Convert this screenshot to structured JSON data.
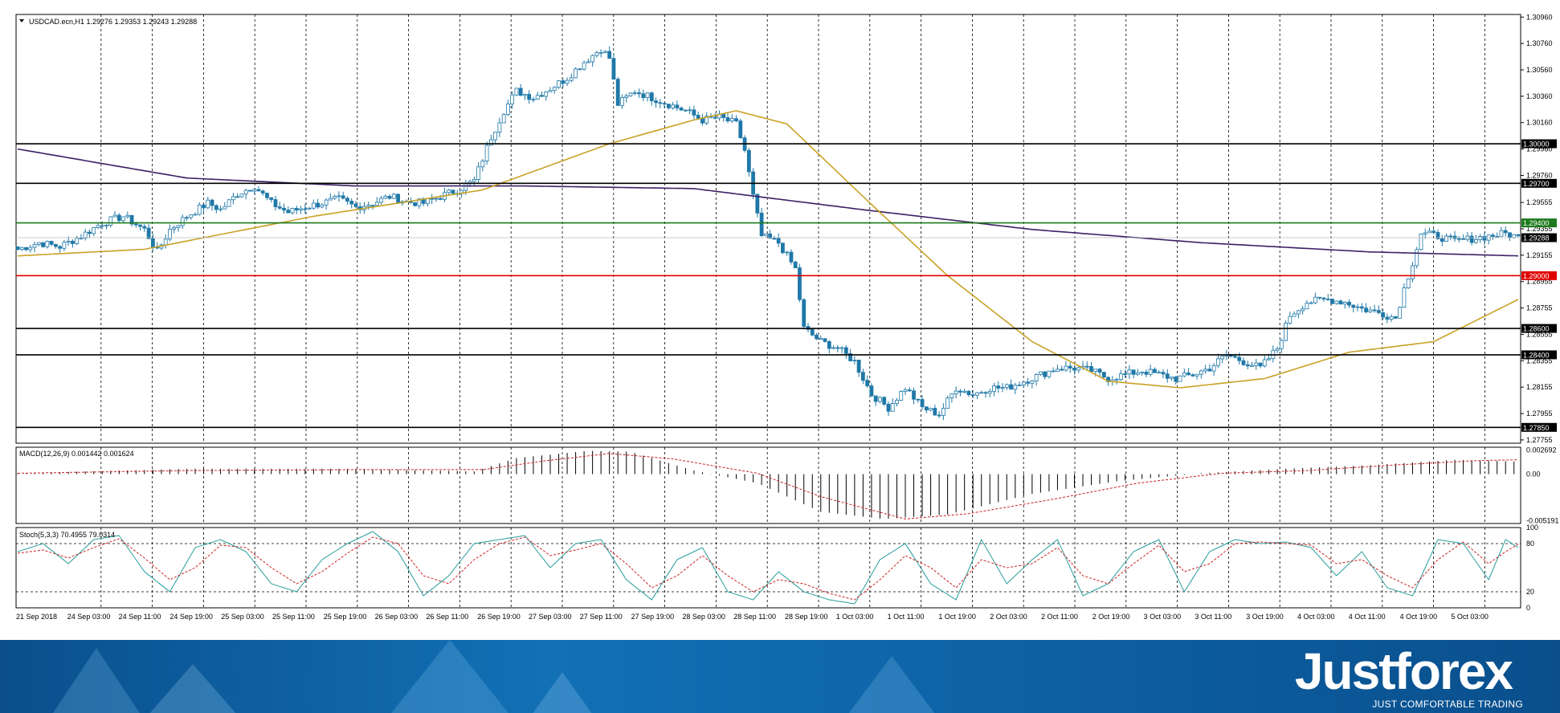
{
  "colors": {
    "candle_up": "#ffffff",
    "candle_down": "#1f78a8",
    "wick": "#1f78a8",
    "ma_long": "#3b2064",
    "ma_short": "#c9a227",
    "level_black": "#000000",
    "level_green": "#1c7a1c",
    "level_red": "#e00000",
    "stoch_main": "#2a9d9d",
    "stoch_signal": "#cc2222",
    "macd_signal": "#cc2222",
    "banner": "#0d5fa2"
  },
  "chart_data": [
    {
      "type": "candlestick",
      "title": "USDCAD.ecn,H1  1.29276 1.29353 1.29243 1.29288",
      "y_ticks": [
        "1.30960",
        "1.30760",
        "1.30560",
        "1.30360",
        "1.30160",
        "1.29960",
        "1.29760",
        "1.29555",
        "1.29355",
        "1.29155",
        "1.28955",
        "1.28755",
        "1.28555",
        "1.28355",
        "1.28155",
        "1.27955",
        "1.27755"
      ],
      "ylim": [
        1.2773,
        1.3098
      ],
      "levels": [
        {
          "value": 1.3,
          "label": "1.30000",
          "color": "black"
        },
        {
          "value": 1.297,
          "label": "1.29700",
          "color": "black"
        },
        {
          "value": 1.294,
          "label": "1.29400",
          "color": "green"
        },
        {
          "value": 1.29288,
          "label": "1.29288",
          "color": "current"
        },
        {
          "value": 1.29,
          "label": "1.29000",
          "color": "red"
        },
        {
          "value": 1.286,
          "label": "1.28600",
          "color": "black"
        },
        {
          "value": 1.284,
          "label": "1.28400",
          "color": "black"
        },
        {
          "value": 1.2785,
          "label": "1.27850",
          "color": "black"
        }
      ],
      "close_path": [
        [
          0,
          1.292
        ],
        [
          5,
          1.2925
        ],
        [
          10,
          1.2922
        ],
        [
          15,
          1.293
        ],
        [
          20,
          1.294
        ],
        [
          25,
          1.2945
        ],
        [
          30,
          1.2935
        ],
        [
          33,
          1.2918
        ],
        [
          36,
          1.2935
        ],
        [
          40,
          1.2945
        ],
        [
          45,
          1.2955
        ],
        [
          48,
          1.295
        ],
        [
          52,
          1.2962
        ],
        [
          56,
          1.2968
        ],
        [
          60,
          1.2955
        ],
        [
          64,
          1.2948
        ],
        [
          68,
          1.2952
        ],
        [
          72,
          1.2955
        ],
        [
          76,
          1.2958
        ],
        [
          80,
          1.2952
        ],
        [
          84,
          1.2955
        ],
        [
          88,
          1.296
        ],
        [
          92,
          1.2956
        ],
        [
          96,
          1.2955
        ],
        [
          100,
          1.296
        ],
        [
          104,
          1.2965
        ],
        [
          108,
          1.2972
        ],
        [
          112,
          1.3005
        ],
        [
          115,
          1.3025
        ],
        [
          118,
          1.304
        ],
        [
          122,
          1.3035
        ],
        [
          126,
          1.3042
        ],
        [
          130,
          1.305
        ],
        [
          134,
          1.3062
        ],
        [
          138,
          1.3072
        ],
        [
          140,
          1.3065
        ],
        [
          142,
          1.303
        ],
        [
          146,
          1.304
        ],
        [
          150,
          1.3035
        ],
        [
          154,
          1.303
        ],
        [
          158,
          1.3025
        ],
        [
          162,
          1.3018
        ],
        [
          166,
          1.302
        ],
        [
          170,
          1.3015
        ],
        [
          172,
          1.2995
        ],
        [
          174,
          1.296
        ],
        [
          176,
          1.293
        ],
        [
          180,
          1.2925
        ],
        [
          184,
          1.2905
        ],
        [
          186,
          1.286
        ],
        [
          190,
          1.285
        ],
        [
          194,
          1.2845
        ],
        [
          198,
          1.2835
        ],
        [
          202,
          1.281
        ],
        [
          206,
          1.28
        ],
        [
          210,
          1.2815
        ],
        [
          214,
          1.28
        ],
        [
          218,
          1.2795
        ],
        [
          222,
          1.2815
        ],
        [
          226,
          1.281
        ],
        [
          230,
          1.2815
        ],
        [
          234,
          1.2815
        ],
        [
          238,
          1.282
        ],
        [
          242,
          1.2825
        ],
        [
          246,
          1.283
        ],
        [
          250,
          1.283
        ],
        [
          254,
          1.2828
        ],
        [
          258,
          1.2822
        ],
        [
          262,
          1.2825
        ],
        [
          266,
          1.2828
        ],
        [
          270,
          1.2825
        ],
        [
          274,
          1.2822
        ],
        [
          278,
          1.2825
        ],
        [
          282,
          1.283
        ],
        [
          286,
          1.284
        ],
        [
          290,
          1.2835
        ],
        [
          294,
          1.283
        ],
        [
          298,
          1.2845
        ],
        [
          301,
          1.287
        ],
        [
          305,
          1.288
        ],
        [
          310,
          1.2882
        ],
        [
          314,
          1.288
        ],
        [
          318,
          1.2875
        ],
        [
          322,
          1.2872
        ],
        [
          326,
          1.2868
        ],
        [
          328,
          1.289
        ],
        [
          330,
          1.291
        ],
        [
          332,
          1.2932
        ],
        [
          336,
          1.293
        ],
        [
          340,
          1.2926
        ],
        [
          344,
          1.2928
        ],
        [
          348,
          1.293
        ],
        [
          352,
          1.2932
        ],
        [
          355,
          1.2929
        ]
      ],
      "ma_long": [
        [
          0,
          1.2996
        ],
        [
          40,
          1.2974
        ],
        [
          80,
          1.2968
        ],
        [
          120,
          1.2968
        ],
        [
          160,
          1.2966
        ],
        [
          200,
          1.295
        ],
        [
          240,
          1.2935
        ],
        [
          280,
          1.2925
        ],
        [
          320,
          1.2918
        ],
        [
          355,
          1.2915
        ]
      ],
      "ma_short": [
        [
          0,
          1.2915
        ],
        [
          30,
          1.292
        ],
        [
          70,
          1.2945
        ],
        [
          110,
          1.2965
        ],
        [
          140,
          1.3
        ],
        [
          160,
          1.3018
        ],
        [
          170,
          1.3025
        ],
        [
          182,
          1.3015
        ],
        [
          200,
          1.296
        ],
        [
          220,
          1.29
        ],
        [
          240,
          1.285
        ],
        [
          258,
          1.282
        ],
        [
          275,
          1.2815
        ],
        [
          295,
          1.2822
        ],
        [
          315,
          1.2842
        ],
        [
          335,
          1.285
        ],
        [
          355,
          1.2882
        ]
      ]
    },
    {
      "type": "bar",
      "title": "MACD(12,26,9) 0.001442 0.001624",
      "y_ticks": [
        "0.002692",
        "0.00",
        "-0.005191"
      ],
      "ylim": [
        -0.0055,
        0.003
      ],
      "hist_path": [
        [
          0,
          0.0001
        ],
        [
          40,
          0.0006
        ],
        [
          80,
          0.0006
        ],
        [
          108,
          0.0003
        ],
        [
          118,
          0.0018
        ],
        [
          135,
          0.0026
        ],
        [
          145,
          0.0025
        ],
        [
          160,
          0.0004
        ],
        [
          175,
          -0.001
        ],
        [
          190,
          -0.0042
        ],
        [
          205,
          -0.005
        ],
        [
          220,
          -0.0045
        ],
        [
          240,
          -0.0022
        ],
        [
          260,
          -0.0008
        ],
        [
          280,
          0.0001
        ],
        [
          300,
          0.0006
        ],
        [
          320,
          0.001
        ],
        [
          340,
          0.0016
        ],
        [
          355,
          0.0014
        ]
      ],
      "signal_path": [
        [
          0,
          0.0001
        ],
        [
          40,
          0.0004
        ],
        [
          80,
          0.0005
        ],
        [
          110,
          0.0005
        ],
        [
          125,
          0.0015
        ],
        [
          140,
          0.0023
        ],
        [
          155,
          0.0017
        ],
        [
          175,
          0.0001
        ],
        [
          190,
          -0.0025
        ],
        [
          210,
          -0.005
        ],
        [
          225,
          -0.0044
        ],
        [
          245,
          -0.0028
        ],
        [
          265,
          -0.001
        ],
        [
          285,
          0.0001
        ],
        [
          305,
          0.0004
        ],
        [
          325,
          0.001
        ],
        [
          345,
          0.0015
        ],
        [
          355,
          0.0016
        ]
      ]
    },
    {
      "type": "line",
      "title": "Stoch(5,3,3) 70.4955 79.0314",
      "y_ticks": [
        "100",
        "80",
        "20",
        "0"
      ],
      "ylim": [
        0,
        100
      ],
      "k_path": [
        [
          0,
          70
        ],
        [
          6,
          80
        ],
        [
          12,
          55
        ],
        [
          18,
          85
        ],
        [
          24,
          90
        ],
        [
          30,
          45
        ],
        [
          36,
          20
        ],
        [
          42,
          75
        ],
        [
          48,
          85
        ],
        [
          54,
          70
        ],
        [
          60,
          30
        ],
        [
          66,
          20
        ],
        [
          72,
          60
        ],
        [
          78,
          80
        ],
        [
          84,
          95
        ],
        [
          90,
          70
        ],
        [
          96,
          15
        ],
        [
          102,
          40
        ],
        [
          108,
          80
        ],
        [
          114,
          85
        ],
        [
          120,
          90
        ],
        [
          126,
          50
        ],
        [
          132,
          80
        ],
        [
          138,
          85
        ],
        [
          144,
          35
        ],
        [
          150,
          10
        ],
        [
          156,
          60
        ],
        [
          162,
          75
        ],
        [
          168,
          20
        ],
        [
          174,
          10
        ],
        [
          180,
          45
        ],
        [
          186,
          20
        ],
        [
          192,
          10
        ],
        [
          198,
          5
        ],
        [
          204,
          60
        ],
        [
          210,
          80
        ],
        [
          216,
          30
        ],
        [
          222,
          10
        ],
        [
          228,
          85
        ],
        [
          234,
          30
        ],
        [
          240,
          60
        ],
        [
          246,
          85
        ],
        [
          252,
          15
        ],
        [
          258,
          30
        ],
        [
          264,
          70
        ],
        [
          270,
          85
        ],
        [
          276,
          20
        ],
        [
          282,
          70
        ],
        [
          288,
          85
        ],
        [
          294,
          80
        ],
        [
          300,
          82
        ],
        [
          306,
          75
        ],
        [
          312,
          40
        ],
        [
          318,
          70
        ],
        [
          324,
          25
        ],
        [
          330,
          15
        ],
        [
          336,
          85
        ],
        [
          342,
          80
        ],
        [
          348,
          35
        ],
        [
          352,
          85
        ],
        [
          355,
          75
        ]
      ],
      "d_path": [
        [
          0,
          68
        ],
        [
          6,
          72
        ],
        [
          12,
          62
        ],
        [
          18,
          75
        ],
        [
          24,
          86
        ],
        [
          30,
          62
        ],
        [
          36,
          35
        ],
        [
          42,
          50
        ],
        [
          48,
          78
        ],
        [
          54,
          75
        ],
        [
          60,
          50
        ],
        [
          66,
          30
        ],
        [
          72,
          45
        ],
        [
          78,
          68
        ],
        [
          84,
          88
        ],
        [
          90,
          80
        ],
        [
          96,
          40
        ],
        [
          102,
          30
        ],
        [
          108,
          60
        ],
        [
          114,
          80
        ],
        [
          120,
          88
        ],
        [
          126,
          65
        ],
        [
          132,
          72
        ],
        [
          138,
          80
        ],
        [
          144,
          55
        ],
        [
          150,
          25
        ],
        [
          156,
          40
        ],
        [
          162,
          65
        ],
        [
          168,
          40
        ],
        [
          174,
          20
        ],
        [
          180,
          35
        ],
        [
          186,
          30
        ],
        [
          192,
          18
        ],
        [
          198,
          10
        ],
        [
          204,
          35
        ],
        [
          210,
          65
        ],
        [
          216,
          50
        ],
        [
          222,
          25
        ],
        [
          228,
          60
        ],
        [
          234,
          50
        ],
        [
          240,
          55
        ],
        [
          246,
          75
        ],
        [
          252,
          40
        ],
        [
          258,
          30
        ],
        [
          264,
          55
        ],
        [
          270,
          78
        ],
        [
          276,
          45
        ],
        [
          282,
          55
        ],
        [
          288,
          80
        ],
        [
          294,
          82
        ],
        [
          300,
          80
        ],
        [
          306,
          78
        ],
        [
          312,
          55
        ],
        [
          318,
          60
        ],
        [
          324,
          40
        ],
        [
          330,
          25
        ],
        [
          336,
          60
        ],
        [
          342,
          82
        ],
        [
          348,
          55
        ],
        [
          352,
          70
        ],
        [
          355,
          79
        ]
      ]
    }
  ],
  "x_ticks": [
    "21 Sep 2018",
    "24 Sep 03:00",
    "24 Sep 11:00",
    "24 Sep 19:00",
    "25 Sep 03:00",
    "25 Sep 11:00",
    "25 Sep 19:00",
    "26 Sep 03:00",
    "26 Sep 11:00",
    "26 Sep 19:00",
    "27 Sep 03:00",
    "27 Sep 11:00",
    "27 Sep 19:00",
    "28 Sep 03:00",
    "28 Sep 11:00",
    "28 Sep 19:00",
    "1 Oct 03:00",
    "1 Oct 11:00",
    "1 Oct 19:00",
    "2 Oct 03:00",
    "2 Oct 11:00",
    "2 Oct 19:00",
    "3 Oct 03:00",
    "3 Oct 11:00",
    "3 Oct 19:00",
    "4 Oct 03:00",
    "4 Oct 11:00",
    "4 Oct 19:00",
    "5 Oct 03:00"
  ],
  "branding": {
    "logo": "Justforex",
    "tagline": "JUST COMFORTABLE TRADING"
  }
}
